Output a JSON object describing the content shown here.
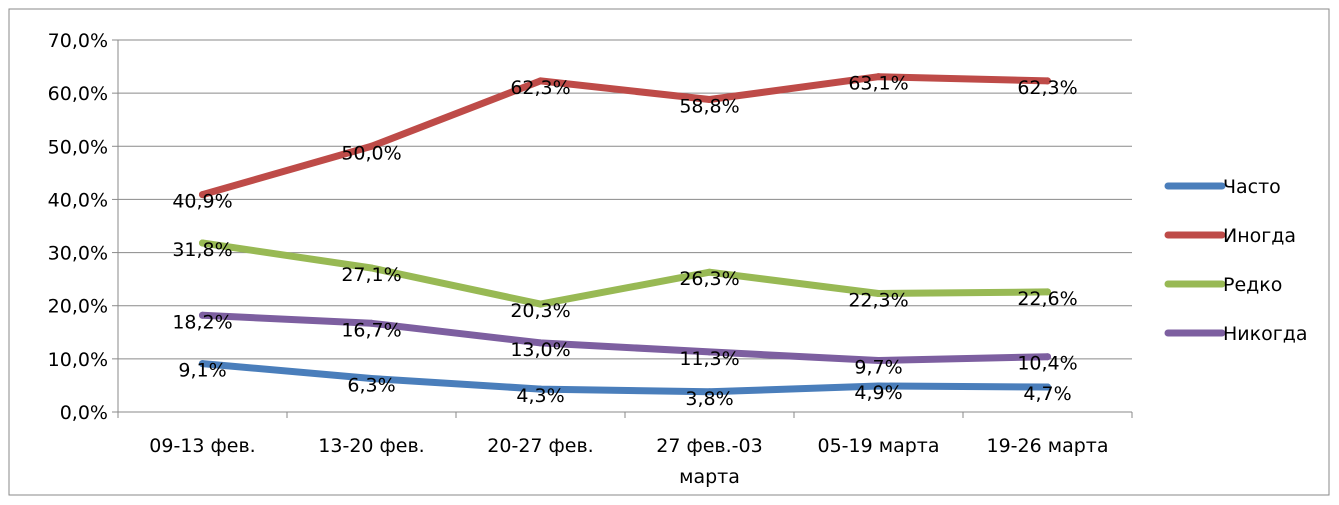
{
  "chart_data": {
    "type": "line",
    "title": "",
    "xlabel": "",
    "ylabel": "",
    "categories": [
      [
        "09-13 фев."
      ],
      [
        "13-20 фев."
      ],
      [
        "20-27 фев."
      ],
      [
        "27 фев.-03",
        "марта"
      ],
      [
        "05-19 марта"
      ],
      [
        "19-26 марта"
      ]
    ],
    "ylim": [
      0,
      70
    ],
    "yticks": [
      "0,0%",
      "10,0%",
      "20,0%",
      "30,0%",
      "40,0%",
      "50,0%",
      "60,0%",
      "70,0%"
    ],
    "grid": true,
    "legend_position": "right",
    "series": [
      {
        "name": "Часто",
        "color": "#4a7ebb",
        "values": [
          9.1,
          6.3,
          4.3,
          3.8,
          4.9,
          4.7
        ],
        "labels": [
          "9,1%",
          "6,3%",
          "4,3%",
          "3,8%",
          "4,9%",
          "4,7%"
        ]
      },
      {
        "name": "Иногда",
        "color": "#be4b48",
        "values": [
          40.9,
          50.0,
          62.3,
          58.8,
          63.1,
          62.3
        ],
        "labels": [
          "40,9%",
          "50,0%",
          "62,3%",
          "58,8%",
          "63,1%",
          "62,3%"
        ]
      },
      {
        "name": "Редко",
        "color": "#98b954",
        "values": [
          31.8,
          27.1,
          20.3,
          26.3,
          22.3,
          22.6
        ],
        "labels": [
          "31,8%",
          "27,1%",
          "20,3%",
          "26,3%",
          "22,3%",
          "22,6%"
        ]
      },
      {
        "name": "Никогда",
        "color": "#7d5fa0",
        "values": [
          18.2,
          16.7,
          13.0,
          11.3,
          9.7,
          10.4
        ],
        "labels": [
          "18,2%",
          "16,7%",
          "13,0%",
          "11,3%",
          "9,7%",
          "10,4%"
        ]
      }
    ]
  }
}
